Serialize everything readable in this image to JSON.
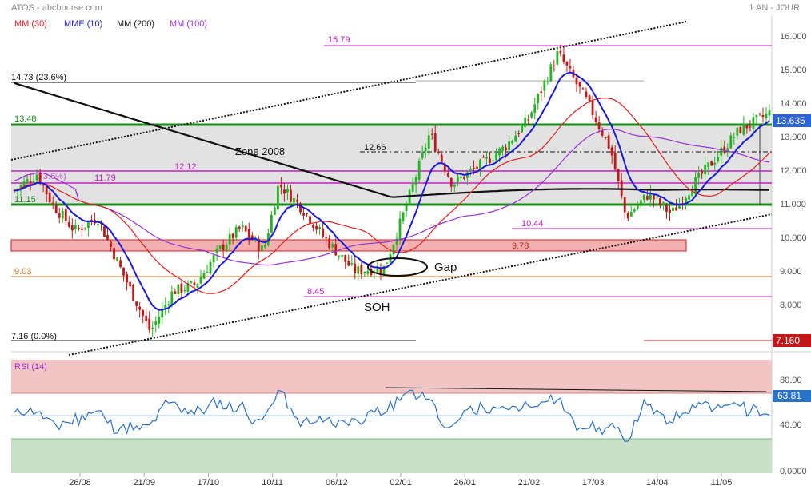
{
  "header": {
    "ticker": "ATOS - abcbourse.com",
    "period": "1 AN - JOUR",
    "legend": [
      {
        "label": "MM (30)",
        "color": "#e02020"
      },
      {
        "label": "MME (10)",
        "color": "#1a1ad8"
      },
      {
        "label": "MM (200)",
        "color": "#111111"
      },
      {
        "label": "MM (100)",
        "color": "#9a30d8"
      }
    ]
  },
  "chart_data": {
    "type": "candlestick",
    "price_axis": {
      "ticks": [
        "16.000",
        "15.000",
        "14.000",
        "13.000",
        "12.000",
        "11.000",
        "10.000",
        "9.000",
        "8.000"
      ],
      "ylim": [
        6.6,
        16.6
      ]
    },
    "x_ticks": [
      "26/08",
      "21/09",
      "17/10",
      "10/11",
      "06/12",
      "02/01",
      "26/01",
      "21/02",
      "17/03",
      "14/04",
      "11/05"
    ],
    "last_price": "13.635",
    "low_marker": "7.160",
    "levels": [
      {
        "label": "15.79",
        "value": 15.79,
        "color": "#c020c0"
      },
      {
        "label": "14.73  (23.6%)",
        "value": 14.73,
        "color": "#111111"
      },
      {
        "label": "13.48",
        "value": 13.48,
        "color": "#1a8a1a"
      },
      {
        "label": "12.66",
        "value": 12.66,
        "color": "#111111"
      },
      {
        "label": "12.12",
        "value": 12.12,
        "color": "#c020c0"
      },
      {
        "label": "(23.6%)",
        "value": 12.07,
        "color": "#c020c0"
      },
      {
        "label": "11.79",
        "value": 11.79,
        "color": "#c020c0"
      },
      {
        "label": "11.15",
        "value": 11.15,
        "color": "#1a8a1a"
      },
      {
        "label": "10.44",
        "value": 10.44,
        "color": "#c020c0"
      },
      {
        "label": "9.78",
        "value": 9.78,
        "color": "#c02020"
      },
      {
        "label": "9.03",
        "value": 9.03,
        "color": "#d07020"
      },
      {
        "label": "8.45",
        "value": 8.45,
        "color": "#c020c0"
      },
      {
        "label": "7.16  (0.0%)",
        "value": 7.16,
        "color": "#111111"
      }
    ],
    "annotations": [
      "Zone 2008",
      "Gap",
      "SOH"
    ],
    "series": [
      {
        "name": "MM (30)",
        "color": "#e02020"
      },
      {
        "name": "MME (10)",
        "color": "#1a1ad8"
      },
      {
        "name": "MM (200)",
        "color": "#111111"
      },
      {
        "name": "MM (100)",
        "color": "#9a30d8"
      }
    ],
    "rsi": {
      "label": "RSI (14)",
      "last": "63.81",
      "ticks": [
        "80.00",
        "40.00",
        "0.0000"
      ],
      "overbought": 70,
      "oversold": 30
    }
  }
}
